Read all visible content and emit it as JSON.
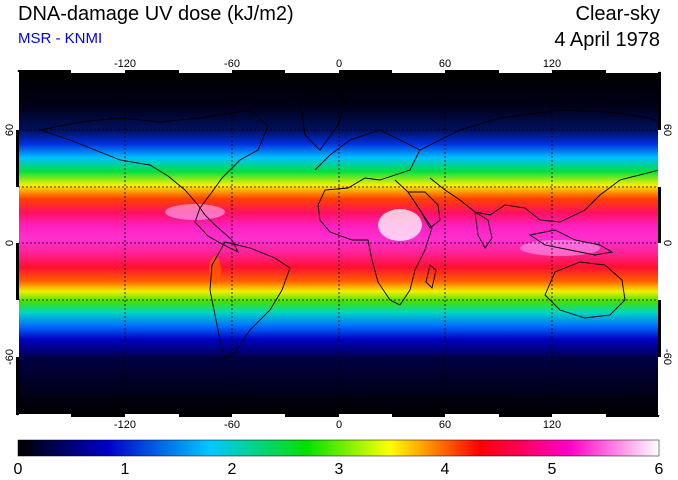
{
  "header": {
    "title": "DNA-damage UV dose (kJ/m2)",
    "source": "MSR - KNMI",
    "condition": "Clear-sky",
    "date": "4 April 1978"
  },
  "map": {
    "projection": "equirectangular",
    "lon_range": [
      -180,
      180
    ],
    "lat_range": [
      -90,
      90
    ],
    "lon_ticks": [
      "-120",
      "-60",
      "0",
      "60",
      "120"
    ],
    "lat_ticks_left": [
      "60",
      "0",
      "-60"
    ],
    "lat_ticks_right": [
      "60",
      "0",
      "-60"
    ],
    "gridlines": true,
    "coastlines": true,
    "field": "DNA-damage UV dose",
    "units": "kJ/m2"
  },
  "colorbar": {
    "min": 0,
    "max": 6,
    "tick_labels": [
      "0",
      "1",
      "2",
      "3",
      "4",
      "5",
      "6"
    ],
    "colors": [
      "#000000",
      "#0000c8",
      "#00c8ff",
      "#00e000",
      "#ffff00",
      "#ff0000",
      "#ff00c8",
      "#ffffff"
    ]
  }
}
